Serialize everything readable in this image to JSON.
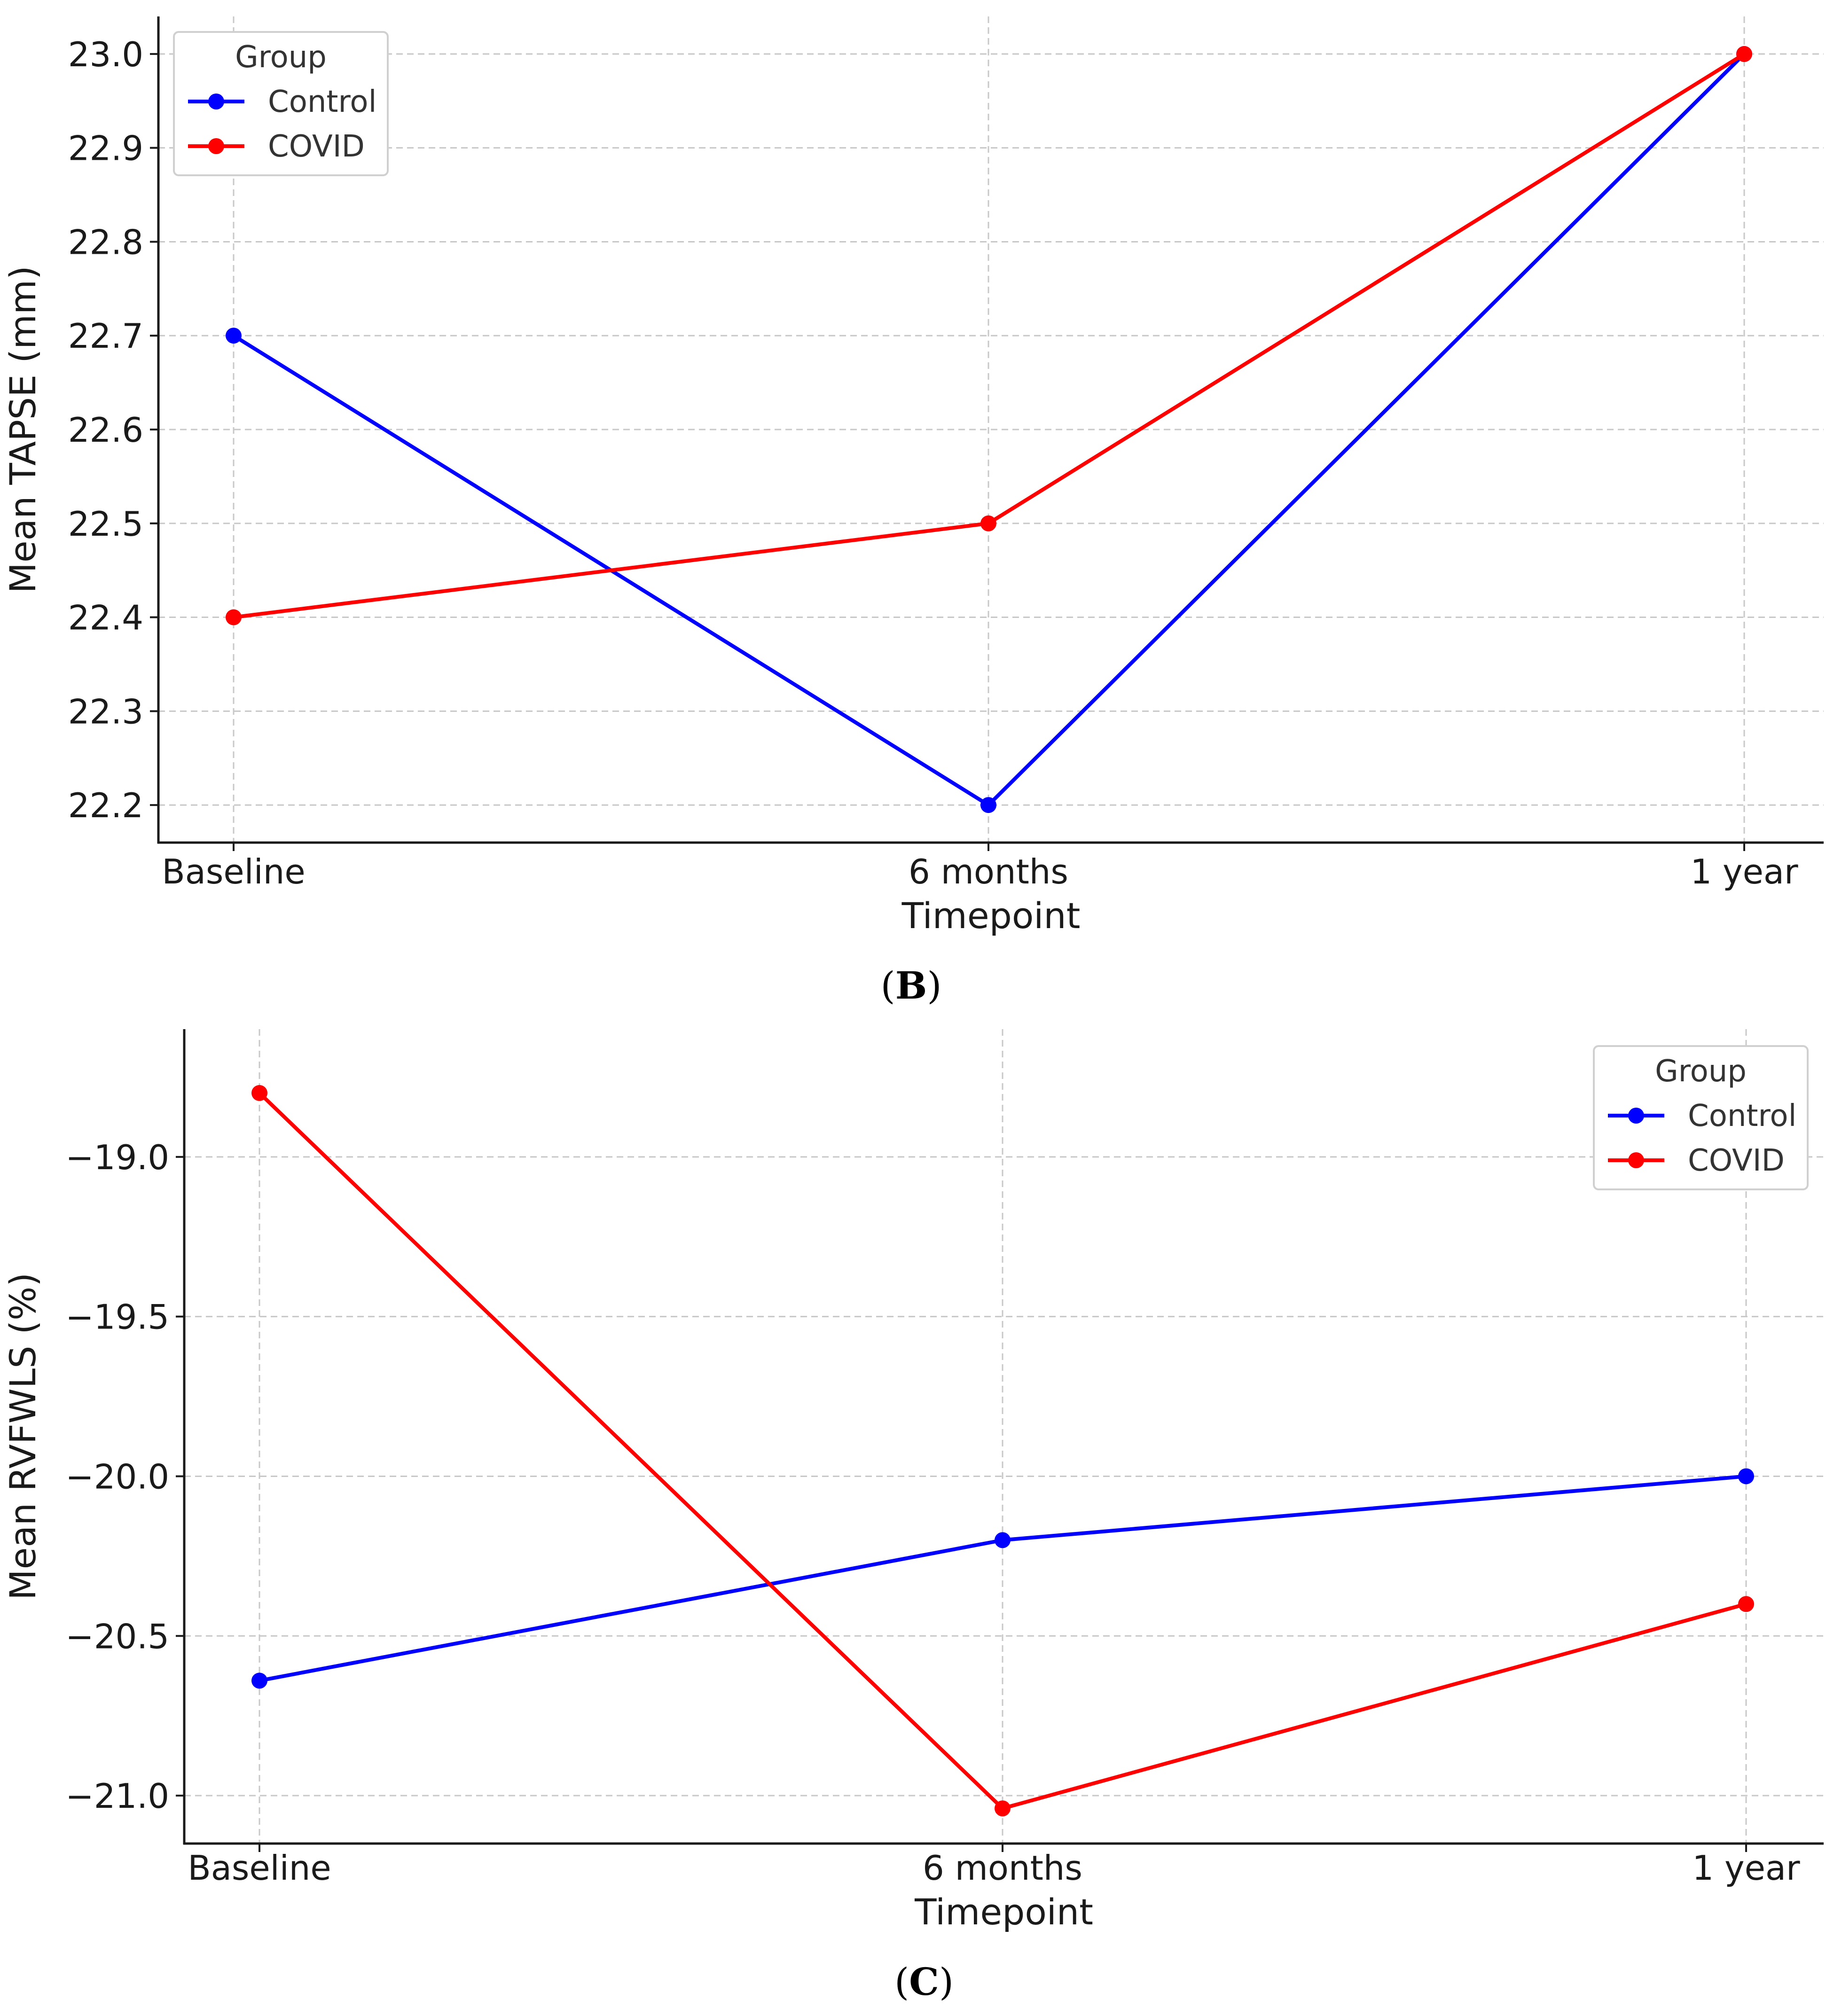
{
  "chart_data": [
    {
      "type": "line",
      "panel": "B",
      "caption": "(B)",
      "caption_letter": "B",
      "categories": [
        "Baseline",
        "6 months",
        "1 year"
      ],
      "xlabel": "Timepoint",
      "ylabel": "Mean TAPSE (mm)",
      "ylim": [
        22.16,
        23.04
      ],
      "yticks": [
        22.2,
        22.3,
        22.4,
        22.5,
        22.6,
        22.7,
        22.8,
        22.9,
        23.0
      ],
      "ytick_labels": [
        "22.2",
        "22.3",
        "22.4",
        "22.5",
        "22.6",
        "22.7",
        "22.8",
        "22.9",
        "23.0"
      ],
      "grid": true,
      "legend": {
        "title": "Group",
        "location": "top-left"
      },
      "series": [
        {
          "name": "Control",
          "color": "#0000ff",
          "values": [
            22.7,
            22.2,
            23.0
          ]
        },
        {
          "name": "COVID",
          "color": "#ff0000",
          "values": [
            22.4,
            22.5,
            23.0
          ]
        }
      ]
    },
    {
      "type": "line",
      "panel": "C",
      "caption": "(C)",
      "caption_letter": "C",
      "categories": [
        "Baseline",
        "6 months",
        "1 year"
      ],
      "xlabel": "Timepoint",
      "ylabel": "Mean RVFWLS (%)",
      "ylim": [
        -21.15,
        -18.6
      ],
      "yticks": [
        -19.0,
        -19.5,
        -20.0,
        -20.5,
        -21.0
      ],
      "ytick_labels": [
        "−19.0",
        "−19.5",
        "−20.0",
        "−20.5",
        "−21.0"
      ],
      "grid": true,
      "legend": {
        "title": "Group",
        "location": "top-right"
      },
      "series": [
        {
          "name": "Control",
          "color": "#0000ff",
          "values": [
            -20.64,
            -20.2,
            -20.0
          ]
        },
        {
          "name": "COVID",
          "color": "#ff0000",
          "values": [
            -18.8,
            -21.04,
            -20.4
          ]
        }
      ]
    }
  ]
}
